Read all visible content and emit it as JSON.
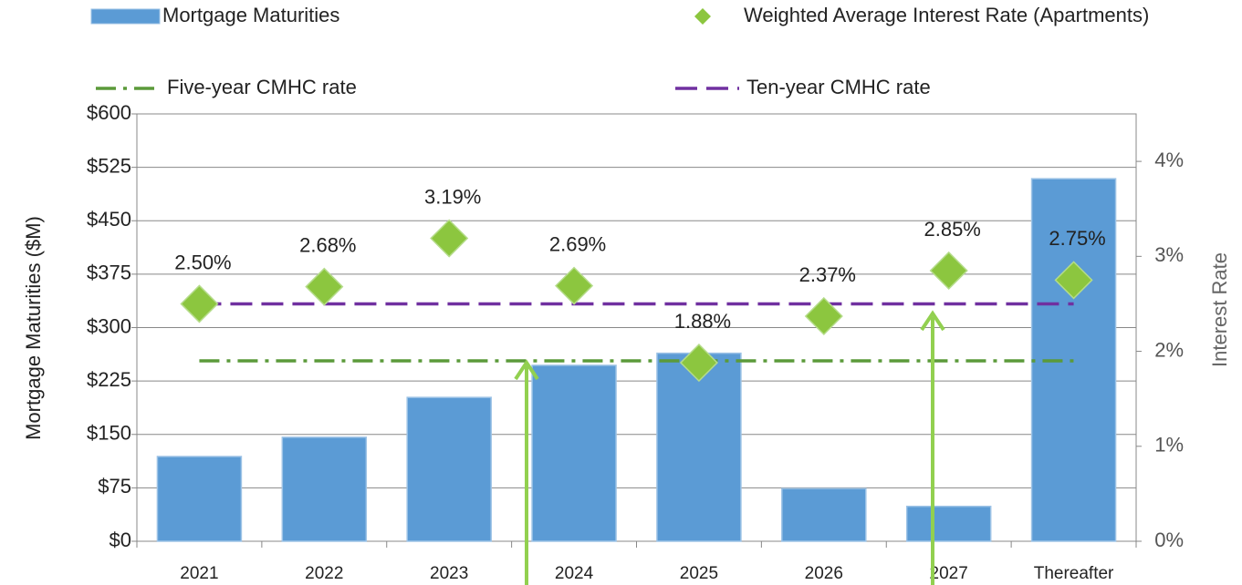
{
  "chart_data": {
    "type": "bar",
    "categories": [
      "2021",
      "2022",
      "2023",
      "2024",
      "2025",
      "2026",
      "2027",
      "Thereafter"
    ],
    "series": [
      {
        "name": "Mortgage Maturities",
        "type": "bar",
        "color": "#5b9bd5",
        "values": [
          119,
          146,
          202,
          247,
          264,
          74,
          49,
          509
        ]
      },
      {
        "name": "Weighted Average Interest Rate (Apartments)",
        "type": "scatter",
        "axis": "y2",
        "color": "#8cc63f",
        "values": [
          2.5,
          2.68,
          3.19,
          2.69,
          1.88,
          2.37,
          2.85,
          2.75
        ],
        "value_labels": [
          "2.50%",
          "2.68%",
          "3.19%",
          "2.69%",
          "1.88%",
          "2.37%",
          "2.85%",
          "2.75%"
        ]
      },
      {
        "name": "Five-year CMHC rate",
        "type": "line",
        "axis": "y2",
        "color": "#5b9a3a",
        "dash": "22 8 4 8",
        "values": [
          1.9,
          1.9,
          1.9,
          1.9,
          1.9,
          1.9,
          1.9,
          1.9
        ]
      },
      {
        "name": "Ten-year CMHC rate",
        "type": "line",
        "axis": "y2",
        "color": "#7030a0",
        "dash": "24 10",
        "values": [
          2.5,
          2.5,
          2.5,
          2.5,
          2.5,
          2.5,
          2.5,
          2.5
        ]
      }
    ],
    "ylabel": "Mortgage Maturities ($M)",
    "y2label": "Interest Rate",
    "ylim": [
      0,
      600
    ],
    "yticks": [
      {
        "value": 0,
        "label": "$0"
      },
      {
        "value": 75,
        "label": "$75"
      },
      {
        "value": 150,
        "label": "$150"
      },
      {
        "value": 225,
        "label": "$225"
      },
      {
        "value": 300,
        "label": "$300"
      },
      {
        "value": 375,
        "label": "$375"
      },
      {
        "value": 450,
        "label": "$450"
      },
      {
        "value": 525,
        "label": "$525"
      },
      {
        "value": 600,
        "label": "$600"
      }
    ],
    "y2lim": [
      0,
      4.5
    ],
    "y2ticks": [
      {
        "value": 0,
        "label": "0%"
      },
      {
        "value": 1,
        "label": "1%"
      },
      {
        "value": 2,
        "label": "2%"
      },
      {
        "value": 3,
        "label": "3%"
      },
      {
        "value": 4,
        "label": "4%"
      }
    ],
    "grid": true
  }
}
